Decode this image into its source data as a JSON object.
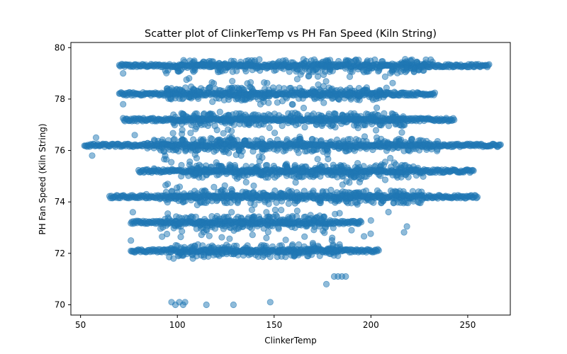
{
  "chart_data": {
    "type": "scatter",
    "title": "Scatter plot of ClinkerTemp vs PH Fan Speed  (Kiln String)",
    "xlabel": "ClinkerTemp",
    "ylabel": "PH Fan Speed  (Kiln String)",
    "xlim": [
      45,
      272
    ],
    "ylim": [
      69.6,
      80.2
    ],
    "xticks": [
      50,
      100,
      150,
      200,
      250
    ],
    "yticks": [
      70,
      72,
      74,
      76,
      78,
      80
    ],
    "grid": false,
    "legend": null,
    "marker_color": "#1f77b4",
    "marker_alpha": 0.5,
    "bands": [
      {
        "y": 79.3,
        "x_min": 70,
        "x_max": 261
      },
      {
        "y": 78.2,
        "x_min": 70,
        "x_max": 233
      },
      {
        "y": 77.2,
        "x_min": 72,
        "x_max": 243
      },
      {
        "y": 76.2,
        "x_min": 52,
        "x_max": 267
      },
      {
        "y": 75.2,
        "x_min": 80,
        "x_max": 253
      },
      {
        "y": 74.2,
        "x_min": 65,
        "x_max": 255
      },
      {
        "y": 73.2,
        "x_min": 76,
        "x_max": 195
      },
      {
        "y": 72.1,
        "x_min": 76,
        "x_max": 204
      }
    ],
    "points": [
      {
        "x": 97,
        "y": 70.1
      },
      {
        "x": 99,
        "y": 70.0
      },
      {
        "x": 101,
        "y": 70.1
      },
      {
        "x": 103,
        "y": 70.0
      },
      {
        "x": 104,
        "y": 70.1
      },
      {
        "x": 115,
        "y": 70.0
      },
      {
        "x": 129,
        "y": 70.0
      },
      {
        "x": 148,
        "y": 70.1
      },
      {
        "x": 177,
        "y": 70.8
      },
      {
        "x": 181,
        "y": 71.1
      },
      {
        "x": 183,
        "y": 71.1
      },
      {
        "x": 185,
        "y": 71.1
      },
      {
        "x": 187,
        "y": 71.1
      },
      {
        "x": 76,
        "y": 72.5
      },
      {
        "x": 77,
        "y": 73.6
      },
      {
        "x": 98,
        "y": 71.8
      },
      {
        "x": 108,
        "y": 71.8
      },
      {
        "x": 56,
        "y": 75.8
      },
      {
        "x": 58,
        "y": 76.5
      },
      {
        "x": 78,
        "y": 76.6
      },
      {
        "x": 88,
        "y": 75.3
      },
      {
        "x": 95,
        "y": 74.7
      },
      {
        "x": 102,
        "y": 75.0
      },
      {
        "x": 128,
        "y": 73.6
      },
      {
        "x": 146,
        "y": 72.6
      },
      {
        "x": 146,
        "y": 73.6
      },
      {
        "x": 170,
        "y": 72.4
      },
      {
        "x": 176,
        "y": 72.8
      },
      {
        "x": 180,
        "y": 72.6
      },
      {
        "x": 190,
        "y": 72.9
      },
      {
        "x": 193,
        "y": 73.9
      },
      {
        "x": 203,
        "y": 76.5
      },
      {
        "x": 210,
        "y": 75.7
      },
      {
        "x": 216,
        "y": 76.7
      },
      {
        "x": 108,
        "y": 72.2
      },
      {
        "x": 136,
        "y": 72.2
      },
      {
        "x": 132,
        "y": 78.4
      },
      {
        "x": 140,
        "y": 79.5
      },
      {
        "x": 168,
        "y": 78.9
      },
      {
        "x": 122,
        "y": 77.5
      },
      {
        "x": 110,
        "y": 75.7
      },
      {
        "x": 84,
        "y": 74.3
      },
      {
        "x": 72,
        "y": 79.0
      },
      {
        "x": 72,
        "y": 77.8
      }
    ]
  }
}
